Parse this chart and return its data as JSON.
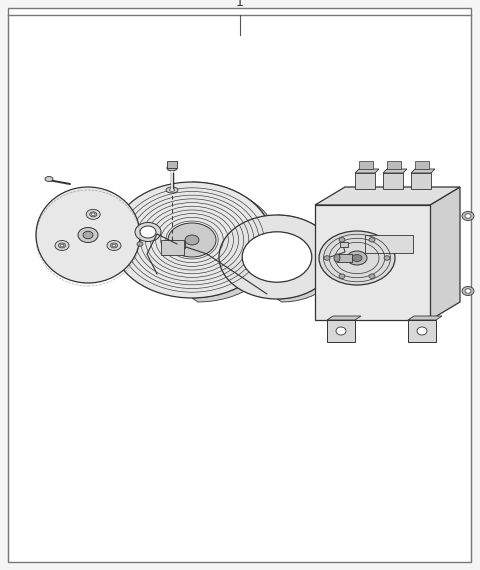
{
  "background_color": "#f5f5f5",
  "border_color": "#888888",
  "line_color": "#333333",
  "fill_color": "#ffffff",
  "fig_width": 4.8,
  "fig_height": 5.7,
  "dpi": 100,
  "title_num": "1"
}
